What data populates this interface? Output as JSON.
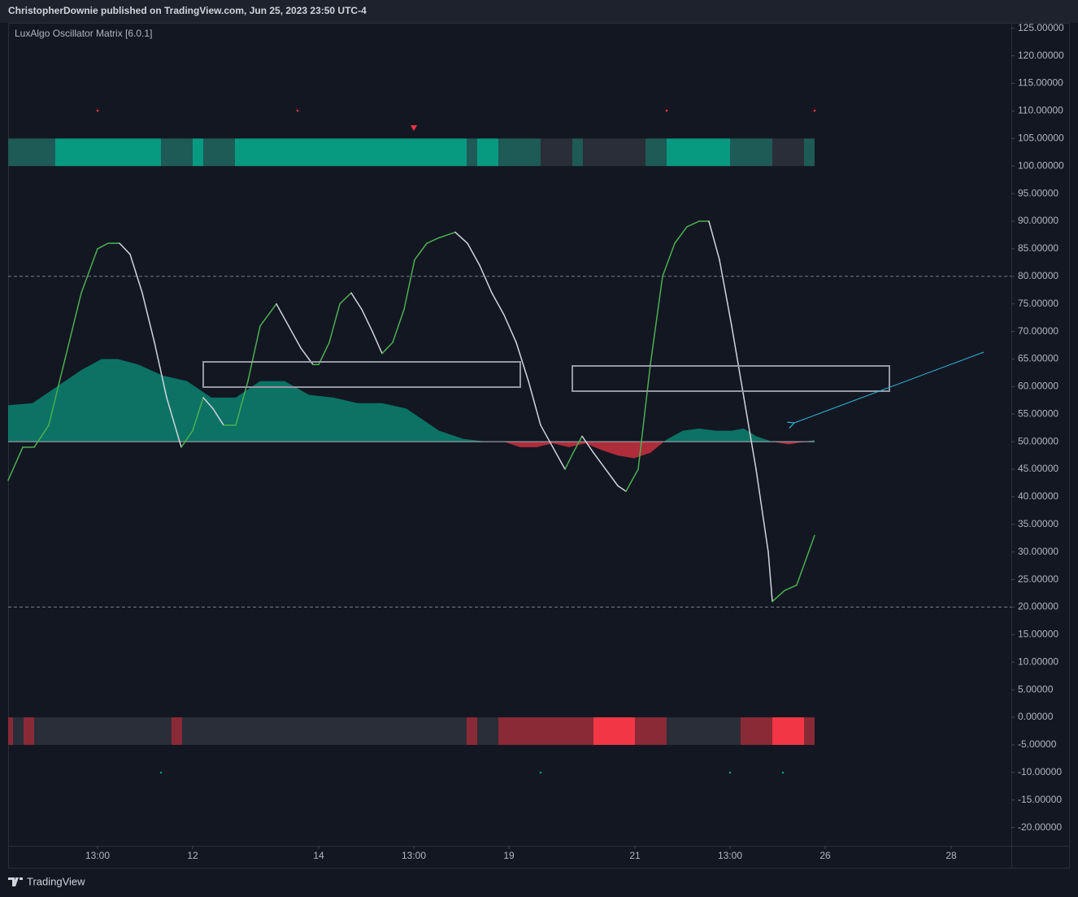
{
  "header": "ChristopherDownie published on TradingView.com, Jun 25, 2023 23:50 UTC-4",
  "footer": "TradingView",
  "chart_data": {
    "type": "line",
    "title": "LuxAlgo Oscillator Matrix [6.0.1]",
    "xlim": [
      0,
      123.4
    ],
    "ylim": [
      -23.3,
      126
    ],
    "xticks": [
      {
        "value": 11,
        "label": "13:00"
      },
      {
        "value": 22.7,
        "label": "12"
      },
      {
        "value": 38.2,
        "label": "14"
      },
      {
        "value": 49.9,
        "label": "13:00"
      },
      {
        "value": 61.6,
        "label": "19"
      },
      {
        "value": 77.1,
        "label": "21"
      },
      {
        "value": 88.8,
        "label": "13:00"
      },
      {
        "value": 100.5,
        "label": "26"
      },
      {
        "value": 116,
        "label": "28"
      }
    ],
    "yticks": [
      {
        "value": 125,
        "label": "125.00000"
      },
      {
        "value": 120,
        "label": "120.00000"
      },
      {
        "value": 115,
        "label": "115.00000"
      },
      {
        "value": 110,
        "label": "110.00000"
      },
      {
        "value": 105,
        "label": "105.00000"
      },
      {
        "value": 100,
        "label": "100.00000"
      },
      {
        "value": 95,
        "label": "95.00000"
      },
      {
        "value": 90,
        "label": "90.00000"
      },
      {
        "value": 85,
        "label": "85.00000"
      },
      {
        "value": 80,
        "label": "80.00000"
      },
      {
        "value": 75,
        "label": "75.00000"
      },
      {
        "value": 70,
        "label": "70.00000"
      },
      {
        "value": 65,
        "label": "65.00000"
      },
      {
        "value": 60,
        "label": "60.00000"
      },
      {
        "value": 55,
        "label": "55.00000"
      },
      {
        "value": 50,
        "label": "50.00000"
      },
      {
        "value": 45,
        "label": "45.00000"
      },
      {
        "value": 40,
        "label": "40.00000"
      },
      {
        "value": 35,
        "label": "35.00000"
      },
      {
        "value": 30,
        "label": "30.00000"
      },
      {
        "value": 25,
        "label": "25.00000"
      },
      {
        "value": 20,
        "label": "20.00000"
      },
      {
        "value": 15,
        "label": "15.00000"
      },
      {
        "value": 10,
        "label": "10.00000"
      },
      {
        "value": 5,
        "label": "5.00000"
      },
      {
        "value": 0,
        "label": "0.00000"
      },
      {
        "value": -5,
        "label": "-5.00000"
      },
      {
        "value": -10,
        "label": "-10.00000"
      },
      {
        "value": -15,
        "label": "-15.00000"
      },
      {
        "value": -20,
        "label": "-20.00000"
      }
    ],
    "baseline": 50,
    "dashed_levels": [
      80,
      20
    ],
    "series": [
      {
        "kind": "area",
        "color": "#089981",
        "color_below": "#f23645",
        "x": [
          0,
          3,
          7,
          9,
          11.5,
          13.5,
          16,
          19,
          22,
          25,
          28,
          31,
          34,
          37,
          40,
          43,
          46,
          49,
          51,
          53,
          56,
          59,
          61,
          63,
          65,
          67,
          69,
          71,
          73,
          75,
          77,
          79,
          81,
          83,
          85,
          87,
          89,
          90.5,
          92,
          94,
          96,
          99.2
        ],
        "values": [
          56.6,
          57,
          61,
          63,
          65,
          65,
          64,
          62,
          61,
          58,
          58,
          61,
          61,
          58.5,
          58,
          57,
          57,
          56,
          54,
          52,
          50.5,
          50,
          50,
          49,
          49,
          49.7,
          49,
          49.7,
          48.5,
          47.5,
          47,
          48,
          50.4,
          52,
          52.4,
          52,
          52,
          52.4,
          51,
          50,
          49.5,
          50.3
        ]
      },
      {
        "kind": "line",
        "color": "#d1d4dc",
        "color_rising": "#4caf50",
        "x": [
          0,
          1.8,
          3.2,
          5,
          7,
          9,
          11,
          12.3,
          13.7,
          15,
          16.5,
          18,
          19.5,
          21.3,
          22.7,
          24,
          25.2,
          26.5,
          28,
          29.5,
          31,
          33,
          34.5,
          36,
          37.5,
          38.2,
          39.5,
          40.8,
          42.2,
          43.5,
          44.8,
          46,
          47.3,
          48.7,
          50,
          51.5,
          53,
          55,
          56.5,
          58,
          59.5,
          61,
          62.5,
          64,
          65.5,
          67,
          68.5,
          69.5,
          70.6,
          72,
          73.5,
          75,
          76,
          77.5,
          79,
          80.5,
          82,
          83.5,
          85,
          86.2,
          87.5,
          89,
          90.5,
          92,
          93.5,
          94,
          95.5,
          97,
          99.2
        ],
        "values": [
          43,
          49,
          49,
          53,
          65,
          77,
          85,
          86,
          86,
          84,
          77,
          68,
          58,
          49,
          52,
          58,
          56,
          53,
          53,
          61,
          71,
          75,
          71,
          67,
          64,
          64,
          68,
          75,
          77,
          74,
          70,
          66,
          68,
          74,
          83,
          86,
          87,
          88,
          86,
          82,
          77,
          73,
          68,
          61,
          53,
          49,
          45,
          48,
          51,
          48,
          45,
          42,
          41,
          45,
          64,
          80,
          86,
          89,
          90,
          90,
          83,
          71,
          58,
          45,
          30,
          21,
          23,
          24,
          33
        ]
      }
    ],
    "top_band": {
      "ylim": [
        100,
        105
      ],
      "segments": [
        {
          "x": [
            0,
            5.8
          ],
          "color": "#1e5a56"
        },
        {
          "x": [
            5.8,
            18.8
          ],
          "color": "#089981"
        },
        {
          "x": [
            18.8,
            22.7
          ],
          "color": "#1e5a56"
        },
        {
          "x": [
            22.7,
            24
          ],
          "color": "#089981"
        },
        {
          "x": [
            24,
            27.9
          ],
          "color": "#1e5a56"
        },
        {
          "x": [
            27.9,
            56.4
          ],
          "color": "#089981"
        },
        {
          "x": [
            56.4,
            57.7
          ],
          "color": "#1e5a56"
        },
        {
          "x": [
            57.7,
            60.3
          ],
          "color": "#089981"
        },
        {
          "x": [
            60.3,
            65.5
          ],
          "color": "#1e5a56"
        },
        {
          "x": [
            65.5,
            69.4
          ],
          "color": "#2a2e39"
        },
        {
          "x": [
            69.4,
            70.7
          ],
          "color": "#1e5a56"
        },
        {
          "x": [
            70.7,
            78.4
          ],
          "color": "#2a2e39"
        },
        {
          "x": [
            78.4,
            81
          ],
          "color": "#1e5a56"
        },
        {
          "x": [
            81,
            88.8
          ],
          "color": "#089981"
        },
        {
          "x": [
            88.8,
            94
          ],
          "color": "#1e5a56"
        },
        {
          "x": [
            94,
            97.9
          ],
          "color": "#2a2e39"
        },
        {
          "x": [
            97.9,
            99.2
          ],
          "color": "#1e5a56"
        }
      ]
    },
    "bottom_band": {
      "ylim": [
        -5,
        0
      ],
      "segments": [
        {
          "x": [
            0,
            0.6
          ],
          "color": "#8a2a36"
        },
        {
          "x": [
            0.6,
            1.9
          ],
          "color": "#2a2e39"
        },
        {
          "x": [
            1.9,
            3.2
          ],
          "color": "#8a2a36"
        },
        {
          "x": [
            3.2,
            20.1
          ],
          "color": "#2a2e39"
        },
        {
          "x": [
            20.1,
            21.4
          ],
          "color": "#8a2a36"
        },
        {
          "x": [
            21.4,
            56.4
          ],
          "color": "#2a2e39"
        },
        {
          "x": [
            56.4,
            57.7
          ],
          "color": "#8a2a36"
        },
        {
          "x": [
            57.7,
            60.3
          ],
          "color": "#2a2e39"
        },
        {
          "x": [
            60.3,
            72
          ],
          "color": "#8a2a36"
        },
        {
          "x": [
            72,
            77.1
          ],
          "color": "#f23645"
        },
        {
          "x": [
            77.1,
            81
          ],
          "color": "#8a2a36"
        },
        {
          "x": [
            81,
            90.1
          ],
          "color": "#2a2e39"
        },
        {
          "x": [
            90.1,
            94
          ],
          "color": "#8a2a36"
        },
        {
          "x": [
            94,
            97.9
          ],
          "color": "#f23645"
        },
        {
          "x": [
            97.9,
            99.2
          ],
          "color": "#8a2a36"
        }
      ]
    }
  }
}
